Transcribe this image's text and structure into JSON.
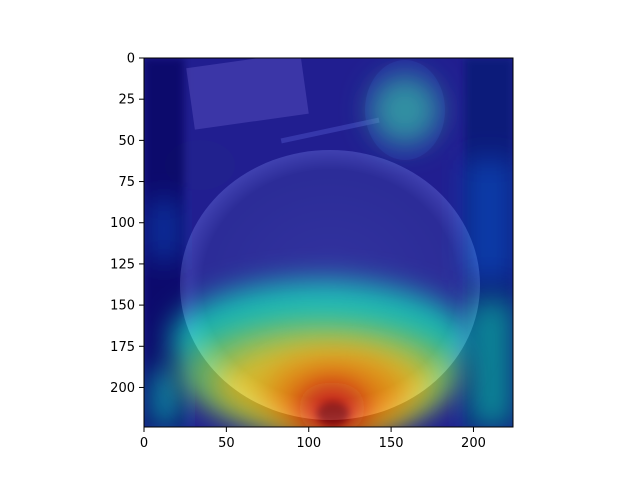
{
  "chart_data": {
    "type": "heatmap",
    "title": "",
    "xlabel": "",
    "ylabel": "",
    "xlim": [
      0,
      224
    ],
    "ylim": [
      224,
      0
    ],
    "grid": false,
    "xticks": [
      0,
      50,
      100,
      150,
      200
    ],
    "yticks": [
      0,
      25,
      50,
      75,
      100,
      125,
      150,
      175,
      200
    ],
    "colormap": "jet",
    "overlay": {
      "hotspot_center": [
        116,
        212
      ],
      "description_colors": [
        "#00007f",
        "#0000ff",
        "#00ffff",
        "#ffff00",
        "#ff0000",
        "#7f0000"
      ]
    }
  }
}
